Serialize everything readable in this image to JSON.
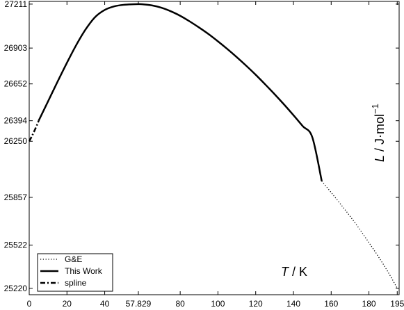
{
  "chart_data": {
    "type": "line",
    "title": "",
    "xlabel": {
      "italic": "T",
      "rest": " / K"
    },
    "ylabel": {
      "italic": "L",
      "rest": " / J·mol",
      "sup": "−1"
    },
    "xlim": [
      0,
      196
    ],
    "ylim": [
      25175,
      27230
    ],
    "xticks": [
      0,
      20,
      40,
      57.829,
      80,
      100,
      120,
      140,
      160,
      180,
      195
    ],
    "xtick_labels": [
      "0",
      "20",
      "40",
      "57.829",
      "80",
      "100",
      "120",
      "140",
      "160",
      "180",
      "195"
    ],
    "yticks": [
      25220,
      25522,
      25857,
      26250,
      26394,
      26652,
      26903,
      27211
    ],
    "ytick_labels": [
      "25220",
      "25522",
      "25857",
      "26250",
      "26394",
      "26652",
      "26903",
      "27211"
    ],
    "grid": false,
    "legend_position": "bottom-left",
    "series": [
      {
        "name": "G&E",
        "style": "dotted",
        "x": [
          155,
          160,
          165,
          170,
          175,
          180,
          185,
          190,
          195
        ],
        "y": [
          25971,
          25891,
          25809,
          25725,
          25635,
          25540,
          25442,
          25337,
          25220
        ]
      },
      {
        "name": "This Work",
        "style": "solid",
        "x": [
          5,
          10,
          15,
          20,
          25,
          30,
          35,
          40,
          45,
          50,
          55,
          57.829,
          60,
          65,
          70,
          75,
          80,
          85,
          90,
          95,
          100,
          105,
          110,
          115,
          120,
          125,
          130,
          135,
          140,
          145,
          150,
          155
        ],
        "y": [
          26394,
          26530,
          26667,
          26800,
          26926,
          27036,
          27121,
          27170,
          27195,
          27206,
          27210,
          27211,
          27210,
          27202,
          27186,
          27161,
          27129,
          27090,
          27047,
          27001,
          26950,
          26896,
          26839,
          26779,
          26716,
          26649,
          26580,
          26508,
          26433,
          26355,
          26278,
          25971
        ]
      },
      {
        "name": "spline",
        "style": "dashdot",
        "x": [
          0,
          1.5,
          3,
          4.5,
          5
        ],
        "y": [
          26250,
          26288,
          26330,
          26376,
          26394
        ]
      }
    ]
  }
}
